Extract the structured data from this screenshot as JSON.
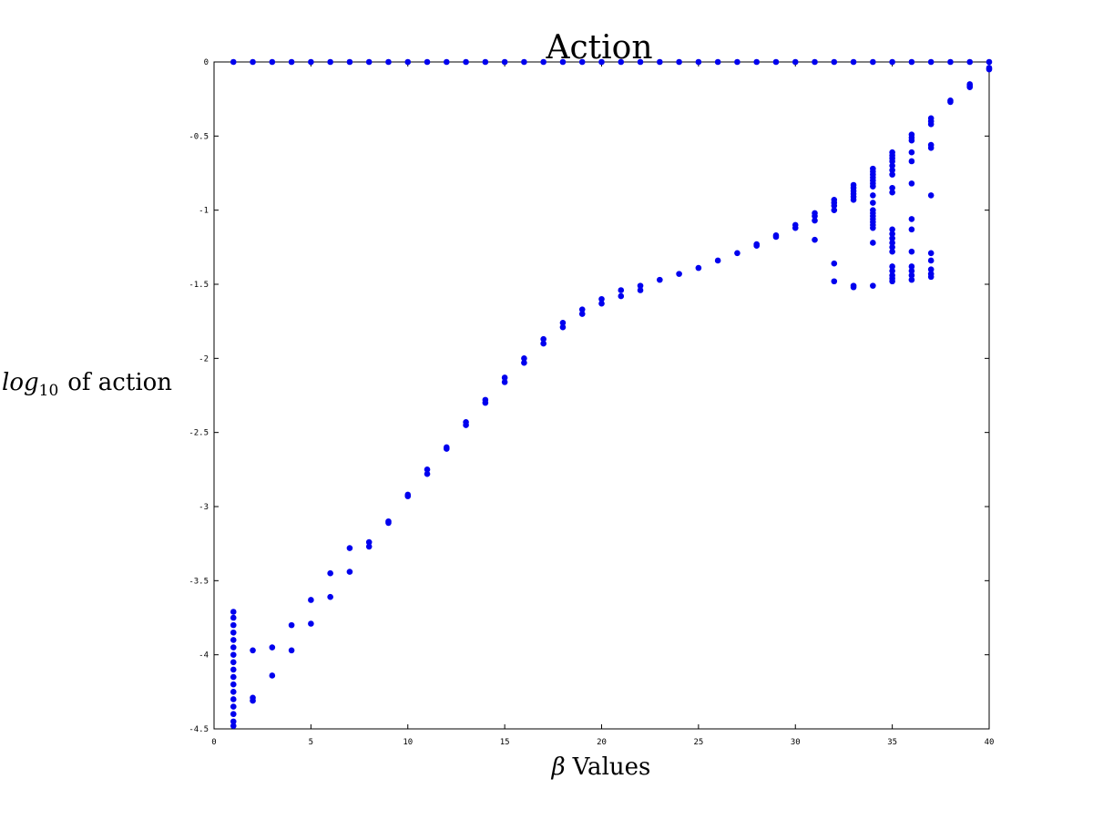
{
  "chart_data": {
    "type": "scatter",
    "title": "Action",
    "xlabel": {
      "symbol": "β",
      "text": "Values"
    },
    "ylabel": {
      "main": "log",
      "sub": "10",
      "text": "of action"
    },
    "xlim": [
      0,
      40
    ],
    "ylim": [
      -4.5,
      0
    ],
    "xticks": [
      0,
      5,
      10,
      15,
      20,
      25,
      30,
      35,
      40
    ],
    "xtick_labels": [
      "0",
      "5",
      "10",
      "15",
      "20",
      "25",
      "30",
      "35",
      "40"
    ],
    "yticks": [
      0,
      -0.5,
      -1,
      -1.5,
      -2,
      -2.5,
      -3,
      -3.5,
      -4,
      -4.5
    ],
    "ytick_labels": [
      "0",
      "-0.5",
      "-1",
      "-1.5",
      "-2",
      "-2.5",
      "-3",
      "-3.5",
      "-4",
      "-4.5"
    ],
    "grid": false,
    "marker_color": "#0000ee",
    "series": [
      {
        "points": [
          [
            1,
            0
          ],
          [
            2,
            0
          ],
          [
            3,
            0
          ],
          [
            4,
            0
          ],
          [
            5,
            0
          ],
          [
            6,
            0
          ],
          [
            7,
            0
          ],
          [
            8,
            0
          ],
          [
            9,
            0
          ],
          [
            10,
            0
          ],
          [
            11,
            0
          ],
          [
            12,
            0
          ],
          [
            13,
            0
          ],
          [
            14,
            0
          ],
          [
            15,
            0
          ],
          [
            16,
            0
          ],
          [
            17,
            0
          ],
          [
            18,
            0
          ],
          [
            19,
            0
          ],
          [
            20,
            0
          ],
          [
            21,
            0
          ],
          [
            22,
            0
          ],
          [
            23,
            0
          ],
          [
            24,
            0
          ],
          [
            25,
            0
          ],
          [
            26,
            0
          ],
          [
            27,
            0
          ],
          [
            28,
            0
          ],
          [
            29,
            0
          ],
          [
            30,
            0
          ],
          [
            31,
            0
          ],
          [
            32,
            0
          ],
          [
            33,
            0
          ],
          [
            34,
            0
          ],
          [
            35,
            0
          ],
          [
            36,
            0
          ],
          [
            37,
            0
          ],
          [
            38,
            0
          ],
          [
            39,
            0
          ],
          [
            40,
            0
          ],
          [
            1,
            -3.71
          ],
          [
            1,
            -3.75
          ],
          [
            1,
            -3.8
          ],
          [
            1,
            -3.85
          ],
          [
            1,
            -3.9
          ],
          [
            1,
            -3.95
          ],
          [
            1,
            -4.0
          ],
          [
            1,
            -4.05
          ],
          [
            1,
            -4.1
          ],
          [
            1,
            -4.15
          ],
          [
            1,
            -4.2
          ],
          [
            1,
            -4.25
          ],
          [
            1,
            -4.3
          ],
          [
            1,
            -4.35
          ],
          [
            1,
            -4.4
          ],
          [
            1,
            -4.45
          ],
          [
            1,
            -4.48
          ],
          [
            2,
            -3.97
          ],
          [
            2,
            -4.29
          ],
          [
            2,
            -4.31
          ],
          [
            3,
            -3.95
          ],
          [
            3,
            -4.14
          ],
          [
            4,
            -3.8
          ],
          [
            4,
            -3.97
          ],
          [
            5,
            -3.63
          ],
          [
            5,
            -3.79
          ],
          [
            6,
            -3.45
          ],
          [
            6,
            -3.61
          ],
          [
            7,
            -3.28
          ],
          [
            7,
            -3.44
          ],
          [
            8,
            -3.24
          ],
          [
            8,
            -3.27
          ],
          [
            9,
            -3.1
          ],
          [
            9,
            -3.11
          ],
          [
            10,
            -2.92
          ],
          [
            10,
            -2.93
          ],
          [
            11,
            -2.75
          ],
          [
            11,
            -2.78
          ],
          [
            12,
            -2.6
          ],
          [
            12,
            -2.61
          ],
          [
            13,
            -2.43
          ],
          [
            13,
            -2.45
          ],
          [
            14,
            -2.28
          ],
          [
            14,
            -2.3
          ],
          [
            15,
            -2.13
          ],
          [
            15,
            -2.16
          ],
          [
            16,
            -2.0
          ],
          [
            16,
            -2.03
          ],
          [
            17,
            -1.87
          ],
          [
            17,
            -1.9
          ],
          [
            18,
            -1.76
          ],
          [
            18,
            -1.79
          ],
          [
            19,
            -1.67
          ],
          [
            19,
            -1.7
          ],
          [
            20,
            -1.6
          ],
          [
            20,
            -1.63
          ],
          [
            21,
            -1.54
          ],
          [
            21,
            -1.58
          ],
          [
            22,
            -1.51
          ],
          [
            22,
            -1.54
          ],
          [
            23,
            -1.47
          ],
          [
            24,
            -1.43
          ],
          [
            25,
            -1.39
          ],
          [
            26,
            -1.34
          ],
          [
            27,
            -1.29
          ],
          [
            28,
            -1.23
          ],
          [
            28,
            -1.24
          ],
          [
            29,
            -1.17
          ],
          [
            29,
            -1.18
          ],
          [
            30,
            -1.1
          ],
          [
            30,
            -1.12
          ],
          [
            31,
            -1.02
          ],
          [
            31,
            -1.04
          ],
          [
            31,
            -1.07
          ],
          [
            31,
            -1.2
          ],
          [
            32,
            -0.93
          ],
          [
            32,
            -0.95
          ],
          [
            32,
            -0.97
          ],
          [
            32,
            -1.0
          ],
          [
            32,
            -1.36
          ],
          [
            32,
            -1.48
          ],
          [
            33,
            -0.83
          ],
          [
            33,
            -0.85
          ],
          [
            33,
            -0.87
          ],
          [
            33,
            -0.89
          ],
          [
            33,
            -0.91
          ],
          [
            33,
            -0.93
          ],
          [
            33,
            -1.51
          ],
          [
            33,
            -1.52
          ],
          [
            34,
            -0.72
          ],
          [
            34,
            -0.74
          ],
          [
            34,
            -0.76
          ],
          [
            34,
            -0.78
          ],
          [
            34,
            -0.8
          ],
          [
            34,
            -0.82
          ],
          [
            34,
            -0.84
          ],
          [
            34,
            -0.9
          ],
          [
            34,
            -0.95
          ],
          [
            34,
            -1.0
          ],
          [
            34,
            -1.02
          ],
          [
            34,
            -1.04
          ],
          [
            34,
            -1.06
          ],
          [
            34,
            -1.08
          ],
          [
            34,
            -1.1
          ],
          [
            34,
            -1.12
          ],
          [
            34,
            -1.22
          ],
          [
            34,
            -1.51
          ],
          [
            35,
            -0.61
          ],
          [
            35,
            -0.63
          ],
          [
            35,
            -0.65
          ],
          [
            35,
            -0.67
          ],
          [
            35,
            -0.7
          ],
          [
            35,
            -0.73
          ],
          [
            35,
            -0.76
          ],
          [
            35,
            -0.85
          ],
          [
            35,
            -0.88
          ],
          [
            35,
            -1.13
          ],
          [
            35,
            -1.16
          ],
          [
            35,
            -1.19
          ],
          [
            35,
            -1.22
          ],
          [
            35,
            -1.25
          ],
          [
            35,
            -1.28
          ],
          [
            35,
            -1.38
          ],
          [
            35,
            -1.41
          ],
          [
            35,
            -1.44
          ],
          [
            35,
            -1.46
          ],
          [
            35,
            -1.48
          ],
          [
            36,
            -0.49
          ],
          [
            36,
            -0.51
          ],
          [
            36,
            -0.53
          ],
          [
            36,
            -0.61
          ],
          [
            36,
            -0.67
          ],
          [
            36,
            -0.82
          ],
          [
            36,
            -1.06
          ],
          [
            36,
            -1.13
          ],
          [
            36,
            -1.28
          ],
          [
            36,
            -1.38
          ],
          [
            36,
            -1.41
          ],
          [
            36,
            -1.44
          ],
          [
            36,
            -1.47
          ],
          [
            37,
            -0.38
          ],
          [
            37,
            -0.4
          ],
          [
            37,
            -0.42
          ],
          [
            37,
            -0.56
          ],
          [
            37,
            -0.58
          ],
          [
            37,
            -0.9
          ],
          [
            37,
            -1.29
          ],
          [
            37,
            -1.34
          ],
          [
            37,
            -1.4
          ],
          [
            37,
            -1.43
          ],
          [
            37,
            -1.45
          ],
          [
            38,
            -0.26
          ],
          [
            38,
            -0.27
          ],
          [
            39,
            -0.15
          ],
          [
            39,
            -0.16
          ],
          [
            39,
            -0.17
          ],
          [
            40,
            -0.04
          ],
          [
            40,
            -0.05
          ]
        ]
      }
    ]
  }
}
